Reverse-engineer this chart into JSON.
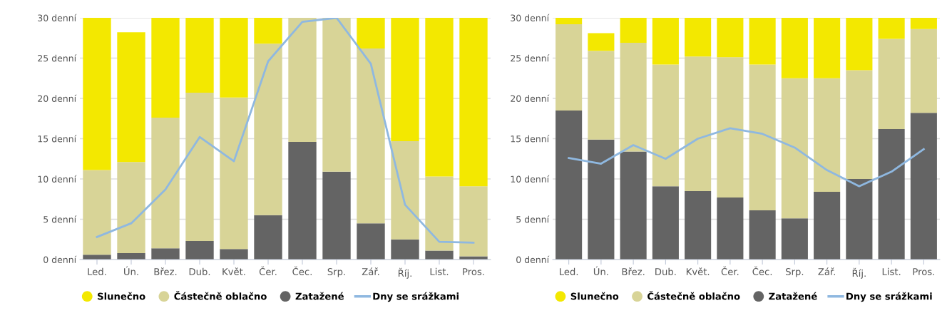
{
  "chart_data": [
    {
      "type": "bar",
      "stacked": true,
      "categories": [
        "Led.",
        "Ún.",
        "Břez.",
        "Dub.",
        "Květ.",
        "Čer.",
        "Čec.",
        "Srp.",
        "Zář.",
        "Říj.",
        "List.",
        "Pros."
      ],
      "ylim": [
        0,
        30
      ],
      "yticks": [
        {
          "value": 0,
          "label": "0 denní"
        },
        {
          "value": 5,
          "label": "5 denní"
        },
        {
          "value": 10,
          "label": "10 denní"
        },
        {
          "value": 15,
          "label": "15 denní"
        },
        {
          "value": 20,
          "label": "20 denní"
        },
        {
          "value": 25,
          "label": "25 denní"
        },
        {
          "value": 30,
          "label": "30 denní"
        }
      ],
      "grid": "y",
      "legend": "bottom",
      "series": [
        {
          "name": "Zatažené",
          "color": "#646464",
          "values": [
            0.6,
            0.8,
            1.4,
            2.3,
            1.3,
            5.5,
            14.6,
            10.9,
            4.5,
            2.5,
            1.1,
            0.4
          ]
        },
        {
          "name": "Částečně oblačno",
          "color": "#d8d497",
          "values": [
            10.5,
            11.3,
            16.2,
            18.4,
            18.8,
            21.3,
            15.4,
            19.1,
            21.7,
            12.2,
            9.2,
            8.7
          ]
        },
        {
          "name": "Slunečno",
          "color": "#f3e800",
          "values": [
            18.9,
            16.1,
            12.4,
            9.3,
            9.9,
            3.2,
            0,
            0,
            3.8,
            15.3,
            19.7,
            20.9
          ]
        },
        {
          "name": "Dny se srážkami",
          "type": "line",
          "color": "#8fb8e0",
          "values": [
            2.8,
            4.5,
            8.7,
            15.2,
            12.2,
            24.6,
            29.5,
            30.0,
            24.3,
            6.8,
            2.2,
            2.1
          ]
        }
      ]
    },
    {
      "type": "bar",
      "stacked": true,
      "categories": [
        "Led.",
        "Ún.",
        "Břez.",
        "Dub.",
        "Květ.",
        "Čer.",
        "Čec.",
        "Srp.",
        "Zář.",
        "Říj.",
        "List.",
        "Pros."
      ],
      "ylim": [
        0,
        30
      ],
      "yticks": [
        {
          "value": 0,
          "label": "0 denní"
        },
        {
          "value": 5,
          "label": "5 denní"
        },
        {
          "value": 10,
          "label": "10 denní"
        },
        {
          "value": 15,
          "label": "15 denní"
        },
        {
          "value": 20,
          "label": "20 denní"
        },
        {
          "value": 25,
          "label": "25 denní"
        },
        {
          "value": 30,
          "label": "30 denní"
        }
      ],
      "grid": "y",
      "legend": "bottom",
      "series": [
        {
          "name": "Zatažené",
          "color": "#646464",
          "values": [
            18.5,
            14.9,
            13.4,
            9.1,
            8.5,
            7.7,
            6.1,
            5.1,
            8.4,
            10.0,
            16.2,
            18.2
          ]
        },
        {
          "name": "Částečně oblačno",
          "color": "#d8d497",
          "values": [
            10.7,
            11.0,
            13.5,
            15.1,
            16.7,
            17.4,
            18.1,
            17.4,
            14.1,
            13.5,
            11.2,
            10.4
          ]
        },
        {
          "name": "Slunečno",
          "color": "#f3e800",
          "values": [
            0.8,
            2.2,
            3.1,
            5.8,
            4.8,
            4.9,
            5.8,
            7.5,
            7.5,
            6.5,
            2.6,
            1.4
          ]
        },
        {
          "name": "Dny se srážkami",
          "type": "line",
          "color": "#8fb8e0",
          "values": [
            12.6,
            11.9,
            14.2,
            12.5,
            15.0,
            16.3,
            15.6,
            13.9,
            11.1,
            9.1,
            10.9,
            13.7
          ]
        }
      ]
    }
  ]
}
